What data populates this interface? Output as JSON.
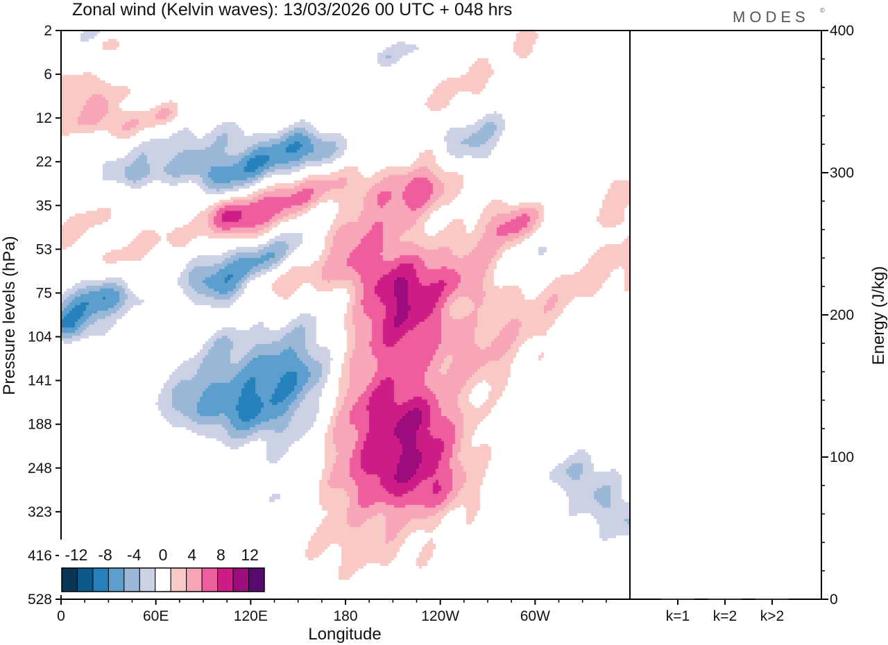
{
  "chart_data": [
    {
      "type": "heatmap",
      "title": "Zonal wind (Kelvin waves):  13/03/2026  00 UTC  + 048 hrs",
      "xlabel": "Longitude",
      "ylabel": "Pressure levels (hPa)",
      "x_tick_labels": [
        "0",
        "60E",
        "120E",
        "180",
        "120W",
        "60W"
      ],
      "x_tick_degrees": [
        0,
        60,
        120,
        180,
        240,
        300
      ],
      "xlim": [
        0,
        360
      ],
      "y_tick_labels": [
        "2",
        "6",
        "12",
        "22",
        "35",
        "53",
        "75",
        "104",
        "141",
        "188",
        "248",
        "323",
        "416",
        "528"
      ],
      "colorbar": {
        "labels": [
          "-12",
          "-8",
          "-4",
          "0",
          "4",
          "8",
          "12"
        ],
        "levels": [
          -14,
          -12,
          -10,
          -8,
          -6,
          -4,
          -2,
          2,
          4,
          6,
          8,
          10,
          12,
          14
        ],
        "colors": [
          "#083552",
          "#0c5a8c",
          "#2680bb",
          "#5b9fce",
          "#9ab7d8",
          "#cdd1e5",
          "#ffffff",
          "#f9c9c5",
          "#f7a5b8",
          "#ef5e9c",
          "#cc1d87",
          "#9c0c7d",
          "#5a0a6e"
        ]
      },
      "features": [
        {
          "kind": "ridge",
          "value": -5,
          "path": [
            [
              20,
              30
            ],
            [
              32,
              10
            ],
            [
              42,
              2
            ]
          ],
          "width": 12
        },
        {
          "kind": "ridge",
          "value": 3,
          "path": [
            [
              25,
              36
            ],
            [
              36,
              29
            ],
            [
              48,
              22
            ]
          ],
          "width": 8
        },
        {
          "kind": "ridge",
          "value": 3,
          "path": [
            [
              34,
              7
            ],
            [
              40,
              1
            ]
          ],
          "width": 7
        },
        {
          "kind": "ridge",
          "value": 3,
          "path": [
            [
              9,
              47
            ],
            [
              18,
              38
            ],
            [
              27,
              30
            ]
          ],
          "width": 8
        },
        {
          "kind": "ridge",
          "value": 3,
          "path": [
            [
              5,
              118
            ],
            [
              13,
              112
            ]
          ],
          "width": 7
        },
        {
          "kind": "ridge",
          "value": 3,
          "path": [
            [
              0,
              168
            ],
            [
              18,
              150
            ],
            [
              31,
              135
            ]
          ],
          "width": 9
        },
        {
          "kind": "ridge",
          "value": 4,
          "path": [
            [
              0,
              218
            ],
            [
              14,
              200
            ],
            [
              24,
              180
            ]
          ],
          "width": 9
        },
        {
          "kind": "ridge",
          "value": 4,
          "path": [
            [
              36,
              225
            ],
            [
              50,
              206
            ],
            [
              64,
              192
            ]
          ],
          "width": 9
        },
        {
          "kind": "ridge",
          "value": -3,
          "path": [
            [
              40,
              308
            ],
            [
              75,
              265
            ],
            [
              103,
              243
            ]
          ],
          "width": 14
        },
        {
          "kind": "ridge",
          "value": -3,
          "path": [
            [
              95,
              330
            ],
            [
              124,
              295
            ],
            [
              150,
              255
            ]
          ],
          "width": 11
        },
        {
          "kind": "ridge",
          "value": -3,
          "path": [
            [
              48,
              338
            ],
            [
              74,
              312
            ],
            [
              86,
              295
            ]
          ],
          "width": 8
        },
        {
          "kind": "ridge",
          "value": -6,
          "path": [
            [
              110,
              350
            ],
            [
              130,
              315
            ],
            [
              155,
              278
            ]
          ],
          "width": 16
        },
        {
          "kind": "ridge",
          "value": 10,
          "path": [
            [
              115,
              425
            ],
            [
              145,
              388
            ],
            [
              190,
              340
            ],
            [
              235,
              295
            ]
          ],
          "width": 18
        },
        {
          "kind": "ridge",
          "value": -7,
          "path": [
            [
              110,
              575
            ],
            [
              144,
              492
            ],
            [
              172,
              398
            ],
            [
              198,
              322
            ],
            [
              240,
              274
            ]
          ],
          "width": 19
        },
        {
          "kind": "ridge",
          "value": 6,
          "path": [
            [
              132,
              580
            ],
            [
              155,
              520
            ],
            [
              185,
              450
            ],
            [
              222,
              370
            ]
          ],
          "width": 17
        },
        {
          "kind": "ridge",
          "value": -3,
          "path": [
            [
              92,
              575
            ],
            [
              118,
              535
            ],
            [
              158,
              502
            ]
          ],
          "width": 11
        },
        {
          "kind": "ridge",
          "value": -9,
          "path": [
            [
              118,
              860
            ],
            [
              136,
              795
            ],
            [
              160,
              700
            ],
            [
              176,
              625
            ]
          ],
          "width": 24
        },
        {
          "kind": "ridge",
          "value": -3,
          "path": [
            [
              146,
              1060
            ],
            [
              156,
              920
            ],
            [
              160,
              800
            ]
          ],
          "width": 15
        },
        {
          "kind": "ridge",
          "value": -3,
          "path": [
            [
              75,
              860
            ],
            [
              90,
              780
            ],
            [
              102,
              718
            ]
          ],
          "width": 12
        },
        {
          "kind": "ridge",
          "value": -3,
          "path": [
            [
              10,
              680
            ],
            [
              24,
              640
            ],
            [
              38,
              610
            ]
          ],
          "width": 10
        },
        {
          "kind": "ridge",
          "value": -6,
          "path": [
            [
              0,
              665
            ],
            [
              12,
              628
            ],
            [
              22,
              610
            ]
          ],
          "width": 13
        },
        {
          "kind": "ridge",
          "value": 3,
          "path": [
            [
              0,
              470
            ],
            [
              10,
              445
            ],
            [
              20,
              425
            ]
          ],
          "width": 9
        },
        {
          "kind": "ridge",
          "value": 3,
          "path": [
            [
              40,
              520
            ],
            [
              55,
              490
            ],
            [
              70,
              470
            ]
          ],
          "width": 9
        },
        {
          "kind": "blob",
          "value": 10,
          "x": 206,
          "y": 605,
          "r": 38
        },
        {
          "kind": "ridge",
          "value": 3,
          "path": [
            [
              204,
              632
            ],
            [
              211,
              720
            ],
            [
              214,
              830
            ],
            [
              215,
              1020
            ]
          ],
          "width": 30
        },
        {
          "kind": "ridge",
          "value": 3,
          "path": [
            [
              173,
              735
            ],
            [
              185,
              860
            ],
            [
              194,
              980
            ]
          ],
          "width": 32
        },
        {
          "kind": "ridge",
          "value": 3,
          "path": [
            [
              212,
              860
            ],
            [
              210,
              1000
            ],
            [
              200,
              1080
            ],
            [
              194,
              1170
            ]
          ],
          "width": 30
        },
        {
          "kind": "ridge",
          "value": 3,
          "path": [
            [
              230,
              900
            ],
            [
              233,
              990
            ],
            [
              236,
              1050
            ]
          ],
          "width": 18
        },
        {
          "kind": "ridge",
          "value": 3,
          "path": [
            [
              268,
              760
            ],
            [
              295,
              660
            ],
            [
              325,
              580
            ],
            [
              360,
              520
            ]
          ],
          "width": 18
        },
        {
          "kind": "ridge",
          "value": 4,
          "path": [
            [
              264,
              585
            ],
            [
              272,
              500
            ],
            [
              285,
              445
            ]
          ],
          "width": 15
        },
        {
          "kind": "ridge",
          "value": 3,
          "path": [
            [
              284,
              450
            ],
            [
              291,
              420
            ]
          ],
          "width": 10
        },
        {
          "kind": "ridge",
          "value": 3,
          "path": [
            [
              240,
              170
            ],
            [
              255,
              130
            ],
            [
              268,
              95
            ]
          ],
          "width": 10
        },
        {
          "kind": "ridge",
          "value": -3,
          "path": [
            [
              250,
              300
            ],
            [
              262,
              258
            ],
            [
              272,
              225
            ]
          ],
          "width": 12
        },
        {
          "kind": "ridge",
          "value": -3,
          "path": [
            [
              254,
              620
            ],
            [
              280,
              560
            ],
            [
              302,
              510
            ]
          ],
          "width": 15
        },
        {
          "kind": "ridge",
          "value": -3,
          "path": [
            [
              208,
              340
            ],
            [
              215,
              310
            ]
          ],
          "width": 10
        },
        {
          "kind": "ridge",
          "value": 3,
          "path": [
            [
              352,
              430
            ],
            [
              358,
              360
            ]
          ],
          "width": 10
        },
        {
          "kind": "ridge",
          "value": -4,
          "path": [
            [
              327,
              1012
            ],
            [
              342,
              1075
            ],
            [
              358,
              1120
            ]
          ],
          "width": 15
        },
        {
          "kind": "ridge",
          "value": 3,
          "path": [
            [
              290,
              42
            ],
            [
              297,
              12
            ]
          ],
          "width": 8
        },
        {
          "kind": "ridge",
          "value": -3,
          "path": [
            [
              206,
              62
            ],
            [
              222,
              42
            ]
          ],
          "width": 7
        }
      ]
    },
    {
      "type": "bar",
      "ylabel": "Energy (J/kg)",
      "categories": [
        "k=1",
        "k=2",
        "k>2"
      ],
      "values": [
        0.5,
        0.5,
        0.5
      ],
      "ylim": [
        0,
        400
      ],
      "y_tick_labels": [
        "0",
        "100",
        "200",
        "300",
        "400"
      ],
      "y_tick_values": [
        0,
        100,
        200,
        300,
        400
      ]
    }
  ],
  "logo": "MODES",
  "logo_mark": "©"
}
